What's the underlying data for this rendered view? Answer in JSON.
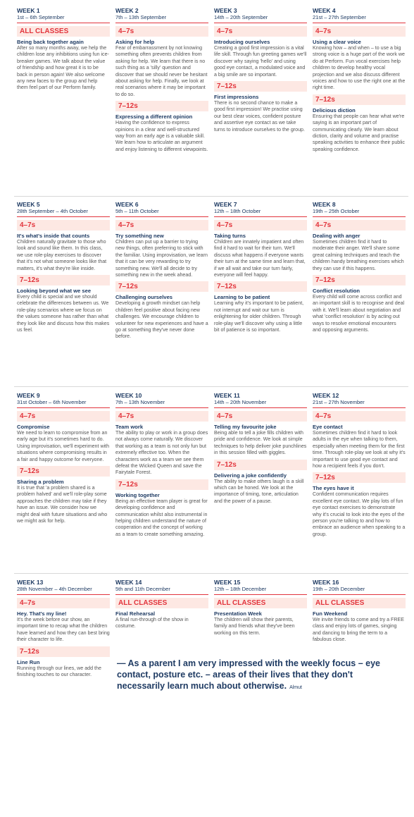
{
  "weeks": [
    {
      "title": "WEEK 1",
      "dates": "1st – 6th September",
      "sections": [
        {
          "label": "ALL CLASSES",
          "heading": "Being back together again",
          "body": "After so many months away, we help the children lose any inhibitions using fun ice-breaker games. We talk about the value of friendship and how great it is to be back in person again! We also welcome any new faces to the group and help them feel part of our Perform family."
        }
      ]
    },
    {
      "title": "WEEK 2",
      "dates": "7th – 13th September",
      "sections": [
        {
          "label": "4–7s",
          "heading": "Asking for help",
          "body": "Fear of embarrassment by not knowing something often prevents children from asking for help. We learn that there is no such thing as a 'silly' question and discover that we should never be hesitant about asking for help. Finally, we look at real scenarios where it may be important to do so."
        },
        {
          "label": "7–12s",
          "heading": "Expressing a different opinion",
          "body": "Having the confidence to express opinions in a clear and well-structured way from an early age is a valuable skill. We learn how to articulate an argument and enjoy listening to different viewpoints."
        }
      ]
    },
    {
      "title": "WEEK 3",
      "dates": "14th – 20th September",
      "sections": [
        {
          "label": "4–7s",
          "heading": "Introducing ourselves",
          "body": "Creating a good first impression is a vital life skill. Through fun greeting games we'll discover why saying 'hello' and using good eye contact, a modulated voice and a big smile are so important."
        },
        {
          "label": "7–12s",
          "heading": "First impressions",
          "body": "There is no second chance to make a good first impression! We practise using our best clear voices, confident posture and assertive eye contact as we take turns to introduce ourselves to the group."
        }
      ]
    },
    {
      "title": "WEEK 4",
      "dates": "21st – 27th September",
      "sections": [
        {
          "label": "4–7s",
          "heading": "Using a clear voice",
          "body": "Knowing how – and when – to use a big strong voice is a huge part of the work we do at Perform. Fun vocal exercises help children to develop healthy vocal projection and we also discuss different voices and how to use the right one at the right time."
        },
        {
          "label": "7–12s",
          "heading": "Delicious diction",
          "body": "Ensuring that people can hear what we're saying is an important part of communicating clearly. We learn about diction, clarity and volume and practise speaking activities to enhance their public speaking confidence."
        }
      ]
    },
    {
      "title": "WEEK 5",
      "dates": "28th September – 4th October",
      "sections": [
        {
          "label": "4–7s",
          "heading": "It's what's inside that counts",
          "body": "Children naturally gravitate to those who look and sound like them. In this class, we use role-play exercises to discover that it's not what someone looks like that matters, it's what they're like inside."
        },
        {
          "label": "7–12s",
          "heading": "Looking beyond what we see",
          "body": "Every child is special and we should celebrate the differences between us. We role-play scenarios where we focus on the values someone has rather than what they look like and discuss how this makes us feel."
        }
      ]
    },
    {
      "title": "WEEK 6",
      "dates": "5th – 11th October",
      "sections": [
        {
          "label": "4–7s",
          "heading": "Try something new",
          "body": "Children can put up a barrier to trying new things, often preferring to stick with the familiar. Using improvisation, we learn that it can be very rewarding to try something new. We'll all decide to try something new in the week ahead."
        },
        {
          "label": "7–12s",
          "heading": "Challenging ourselves",
          "body": "Developing a growth mindset can help children feel positive about facing new challenges. We encourage children to volunteer for new experiences and have a go at something they've never done before."
        }
      ]
    },
    {
      "title": "WEEK 7",
      "dates": "12th – 18th October",
      "sections": [
        {
          "label": "4–7s",
          "heading": "Taking turns",
          "body": "Children are innately impatient and often find it hard to wait for their turn. We'll discuss what happens if everyone wants their turn at the same time and learn that, if we all wait and take our turn fairly, everyone will feel happy."
        },
        {
          "label": "7–12s",
          "heading": "Learning to be patient",
          "body": "Learning why it's important to be patient, not interrupt and wait our turn is enlightening for older children. Through role-play we'll discover why using a little bit of patience is so important."
        }
      ]
    },
    {
      "title": "WEEK 8",
      "dates": "19th – 25th October",
      "sections": [
        {
          "label": "4–7s",
          "heading": "Dealing with anger",
          "body": "Sometimes children find it hard to moderate their anger. We'll share some great calming techniques and teach the children handy breathing exercises which they can use if this happens."
        },
        {
          "label": "7–12s",
          "heading": "Conflict resolution",
          "body": "Every child will come across conflict and an important skill is to recognise and deal with it. We'll learn about negotiation and what 'conflict resolution' is by acting out ways to resolve emotional encounters and opposing arguments."
        }
      ]
    },
    {
      "title": "WEEK 9",
      "dates": "31st October – 6th November",
      "sections": [
        {
          "label": "4–7s",
          "heading": "Compromise",
          "body": "We need to learn to compromise from an early age but it's sometimes hard to do. Using improvisation, we'll experiment with situations where compromising results in a fair and happy outcome for everyone."
        },
        {
          "label": "7–12s",
          "heading": "Sharing a problem",
          "body": "It is true that 'a problem shared is a problem halved' and we'll role-play some approaches the children may take if they have an issue. We consider how we might deal with future situations and who we might ask for help."
        }
      ]
    },
    {
      "title": "WEEK 10",
      "dates": "7th – 13th November",
      "sections": [
        {
          "label": "4–7s",
          "heading": "Team work",
          "body": "The ability to play or work in a group does not always come naturally. We discover that working as a team is not only fun but extremely effective too. When the characters work as a team we see them defeat the Wicked Queen and save the Fairytale Forest."
        },
        {
          "label": "7–12s",
          "heading": "Working together",
          "body": "Being an effective team player is great for developing confidence and communication whilst also instrumental in helping children understand the nature of cooperation and the concept of working as a team to create something amazing."
        }
      ]
    },
    {
      "title": "WEEK 11",
      "dates": "14th – 20th November",
      "sections": [
        {
          "label": "4–7s",
          "heading": "Telling my favourite joke",
          "body": "Being able to tell a joke fills children with pride and confidence. We look at simple techniques to help deliver joke punchlines in this session filled with giggles."
        },
        {
          "label": "7–12s",
          "heading": "Delivering a joke confidently",
          "body": "The ability to make others laugh is a skill which can be honed. We look at the importance of timing, tone, articulation and the power of a pause."
        }
      ]
    },
    {
      "title": "WEEK 12",
      "dates": "21st – 27th November",
      "sections": [
        {
          "label": "4–7s",
          "heading": "Eye contact",
          "body": "Sometimes children find it hard to look adults in the eye when talking to them, especially when meeting them for the first time. Through role-play we look at why it's important to use good eye contact and how a recipient feels if you don't."
        },
        {
          "label": "7–12s",
          "heading": "The eyes have it",
          "body": "Confident communication requires excellent eye contact. We play lots of fun eye contact exercises to demonstrate why it's crucial to look into the eyes of the person you're talking to and how to embrace an audience when speaking to a group."
        }
      ]
    },
    {
      "title": "WEEK 13",
      "dates": "28th November – 4th December",
      "sections": [
        {
          "label": "4–7s",
          "heading": "Hey. That's my line!",
          "body": "It's the week before our show, an important time to recap what the children have learned and how they can best bring their character to life."
        },
        {
          "label": "7–12s",
          "heading": "Line Run",
          "body": "Running through our lines, we add the finishing touches to our character."
        }
      ]
    },
    {
      "title": "WEEK 14",
      "dates": "5th and 11th December",
      "sections": [
        {
          "label": "ALL CLASSES",
          "heading": "Final Rehearsal",
          "body": "A final run-through of the show in costume."
        }
      ]
    },
    {
      "title": "WEEK 15",
      "dates": "12th – 18th December",
      "sections": [
        {
          "label": "ALL CLASSES",
          "heading": "Presentation Week",
          "body": "The children will show their parents, family and friends what they've been working on this term."
        }
      ]
    },
    {
      "title": "WEEK 16",
      "dates": "19th – 20th December",
      "sections": [
        {
          "label": "ALL CLASSES",
          "heading": "Fun Weekend",
          "body": "We invite friends to come and try a FREE class and enjoy lots of games, singing and dancing to bring the term to a fabulous close."
        }
      ]
    }
  ],
  "quote": {
    "text": "— As a parent I am very impressed with the weekly focus – eye contact, posture etc. – areas of their lives that they don't necessarily learn much about otherwise.",
    "author": "Almut"
  }
}
